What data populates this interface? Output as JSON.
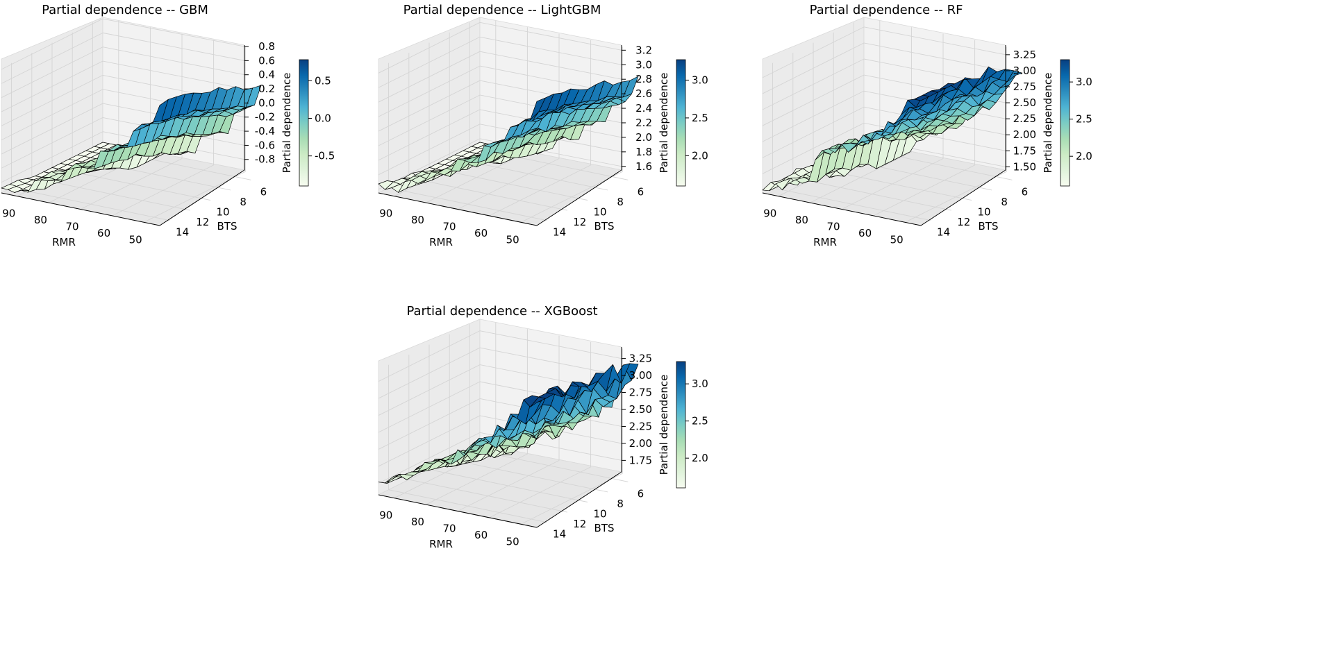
{
  "figure": {
    "background": "#ffffff"
  },
  "colormap": {
    "name": "GnBu",
    "stops": [
      "#f7fcf0",
      "#e0f3db",
      "#ccebc5",
      "#a8ddb5",
      "#7bccc4",
      "#4eb3d3",
      "#2b8cbe",
      "#0868ac",
      "#084081"
    ]
  },
  "chart_data": [
    {
      "type": "surface3d",
      "title": "Partial dependence -- GBM",
      "xlabel": "RMR",
      "ylabel": "BTS",
      "zlabel": "Partial dependence",
      "x_ticks": [
        "90",
        "80",
        "70",
        "60",
        "50"
      ],
      "y_ticks": [
        "6",
        "8",
        "10",
        "12",
        "14"
      ],
      "z_ticks": [
        "0.8",
        "0.6",
        "0.4",
        "0.2",
        "0.0",
        "-0.2",
        "-0.4",
        "-0.6",
        "-0.8"
      ],
      "z_tick_values": [
        0.8,
        0.6,
        0.4,
        0.2,
        0.0,
        -0.2,
        -0.4,
        -0.6,
        -0.8
      ],
      "zlim": [
        -0.95,
        0.82
      ],
      "colorbar_range": [
        -0.9,
        0.78
      ],
      "colorbar_ticks": [
        "0.5",
        "0.0",
        "-0.5"
      ],
      "colorbar_tick_values": [
        0.5,
        0.0,
        -0.5
      ]
    },
    {
      "type": "surface3d",
      "title": "Partial dependence -- LightGBM",
      "xlabel": "RMR",
      "ylabel": "BTS",
      "zlabel": "Partial dependence",
      "x_ticks": [
        "90",
        "80",
        "70",
        "60",
        "50"
      ],
      "y_ticks": [
        "6",
        "8",
        "10",
        "12",
        "14"
      ],
      "z_ticks": [
        "3.2",
        "3.0",
        "2.8",
        "2.6",
        "2.4",
        "2.2",
        "2.0",
        "1.8",
        "1.6"
      ],
      "z_tick_values": [
        3.2,
        3.0,
        2.8,
        2.6,
        2.4,
        2.2,
        2.0,
        1.8,
        1.6
      ],
      "zlim": [
        1.55,
        3.27
      ],
      "colorbar_range": [
        1.6,
        3.27
      ],
      "colorbar_ticks": [
        "3.0",
        "2.5",
        "2.0"
      ],
      "colorbar_tick_values": [
        3.0,
        2.5,
        2.0
      ]
    },
    {
      "type": "surface3d",
      "title": "Partial dependence -- RF",
      "xlabel": "RMR",
      "ylabel": "BTS",
      "zlabel": "Partial dependence",
      "x_ticks": [
        "90",
        "80",
        "70",
        "60",
        "50"
      ],
      "y_ticks": [
        "6",
        "8",
        "10",
        "12",
        "14"
      ],
      "z_ticks": [
        "3.25",
        "3.00",
        "2.75",
        "2.50",
        "2.25",
        "2.00",
        "1.75",
        "1.50"
      ],
      "z_tick_values": [
        3.25,
        3.0,
        2.75,
        2.5,
        2.25,
        2.0,
        1.75,
        1.5
      ],
      "zlim": [
        1.45,
        3.4
      ],
      "colorbar_range": [
        1.6,
        3.3
      ],
      "colorbar_ticks": [
        "3.0",
        "2.5",
        "2.0"
      ],
      "colorbar_tick_values": [
        3.0,
        2.5,
        2.0
      ]
    },
    {
      "type": "surface3d",
      "title": "Partial dependence -- XGBoost",
      "xlabel": "RMR",
      "ylabel": "BTS",
      "zlabel": "Partial dependence",
      "x_ticks": [
        "90",
        "80",
        "70",
        "60",
        "50"
      ],
      "y_ticks": [
        "6",
        "8",
        "10",
        "12",
        "14"
      ],
      "z_ticks": [
        "3.25",
        "3.00",
        "2.75",
        "2.50",
        "2.25",
        "2.00",
        "1.75"
      ],
      "z_tick_values": [
        3.25,
        3.0,
        2.75,
        2.5,
        2.25,
        2.0,
        1.75
      ],
      "zlim": [
        1.58,
        3.42
      ],
      "colorbar_range": [
        1.6,
        3.3
      ],
      "colorbar_ticks": [
        "3.0",
        "2.5",
        "2.0"
      ],
      "colorbar_tick_values": [
        3.0,
        2.5,
        2.0
      ]
    }
  ]
}
